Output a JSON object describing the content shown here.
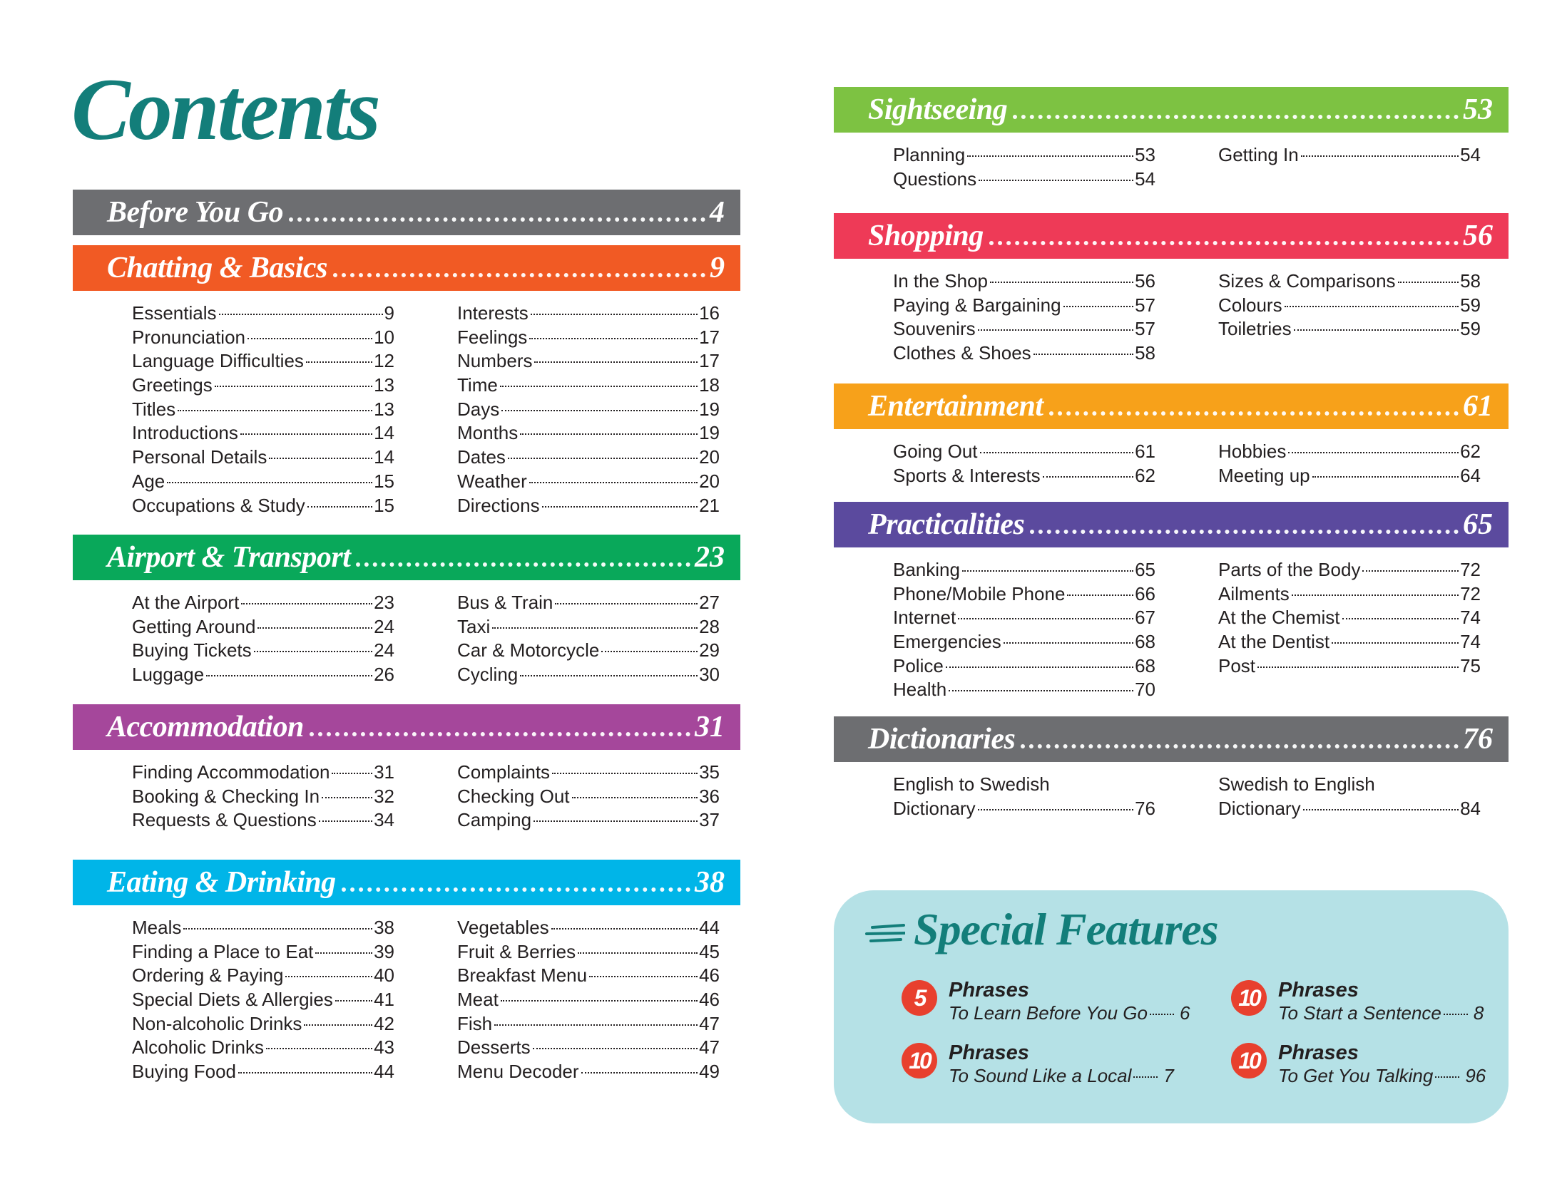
{
  "title": "Contents",
  "sections": [
    {
      "id": "before",
      "title": "Before You Go",
      "page": "4",
      "color": "#6d6e71",
      "columns": []
    },
    {
      "id": "chatting",
      "title": "Chatting & Basics",
      "page": "9",
      "color": "#f15a24",
      "columns": [
        [
          {
            "label": "Essentials",
            "page": "9"
          },
          {
            "label": "Pronunciation",
            "page": "10"
          },
          {
            "label": "Language Difficulties",
            "page": "12"
          },
          {
            "label": "Greetings",
            "page": "13"
          },
          {
            "label": "Titles",
            "page": "13"
          },
          {
            "label": "Introductions",
            "page": "14"
          },
          {
            "label": "Personal Details",
            "page": "14"
          },
          {
            "label": "Age",
            "page": "15"
          },
          {
            "label": "Occupations & Study",
            "page": "15"
          }
        ],
        [
          {
            "label": "Interests",
            "page": "16"
          },
          {
            "label": "Feelings",
            "page": "17"
          },
          {
            "label": "Numbers",
            "page": "17"
          },
          {
            "label": "Time",
            "page": "18"
          },
          {
            "label": "Days",
            "page": "19"
          },
          {
            "label": "Months",
            "page": "19"
          },
          {
            "label": "Dates",
            "page": "20"
          },
          {
            "label": "Weather",
            "page": "20"
          },
          {
            "label": "Directions",
            "page": "21"
          }
        ]
      ]
    },
    {
      "id": "airport",
      "title": "Airport & Transport",
      "page": "23",
      "color": "#09a85a",
      "columns": [
        [
          {
            "label": "At the Airport",
            "page": "23"
          },
          {
            "label": "Getting Around",
            "page": "24"
          },
          {
            "label": "Buying Tickets",
            "page": "24"
          },
          {
            "label": "Luggage",
            "page": "26"
          }
        ],
        [
          {
            "label": "Bus & Train",
            "page": "27"
          },
          {
            "label": "Taxi",
            "page": "28"
          },
          {
            "label": "Car & Motorcycle",
            "page": "29"
          },
          {
            "label": "Cycling",
            "page": "30"
          }
        ]
      ]
    },
    {
      "id": "accommodation",
      "title": "Accommodation",
      "page": "31",
      "color": "#a5479b",
      "columns": [
        [
          {
            "label": "Finding Accommodation",
            "page": "31"
          },
          {
            "label": "Booking & Checking In",
            "page": "32"
          },
          {
            "label": "Requests & Questions",
            "page": "34"
          }
        ],
        [
          {
            "label": "Complaints",
            "page": "35"
          },
          {
            "label": "Checking Out",
            "page": "36"
          },
          {
            "label": "Camping",
            "page": "37"
          }
        ]
      ]
    },
    {
      "id": "eating",
      "title": "Eating & Drinking",
      "page": "38",
      "color": "#00b5e8",
      "columns": [
        [
          {
            "label": "Meals",
            "page": "38"
          },
          {
            "label": "Finding a Place to Eat",
            "page": "39"
          },
          {
            "label": "Ordering & Paying",
            "page": "40"
          },
          {
            "label": "Special Diets & Allergies",
            "page": "41"
          },
          {
            "label": "Non-alcoholic Drinks",
            "page": "42"
          },
          {
            "label": "Alcoholic Drinks",
            "page": "43"
          },
          {
            "label": "Buying Food",
            "page": "44"
          }
        ],
        [
          {
            "label": "Vegetables",
            "page": "44"
          },
          {
            "label": "Fruit & Berries",
            "page": "45"
          },
          {
            "label": "Breakfast Menu",
            "page": "46"
          },
          {
            "label": "Meat",
            "page": "46"
          },
          {
            "label": "Fish",
            "page": "47"
          },
          {
            "label": "Desserts",
            "page": "47"
          },
          {
            "label": "Menu Decoder",
            "page": "49"
          }
        ]
      ]
    },
    {
      "id": "sightseeing",
      "title": "Sightseeing",
      "page": "53",
      "color": "#7dc242",
      "columns": [
        [
          {
            "label": "Planning",
            "page": "53"
          },
          {
            "label": "Questions",
            "page": "54"
          }
        ],
        [
          {
            "label": "Getting In",
            "page": "54"
          }
        ]
      ]
    },
    {
      "id": "shopping",
      "title": "Shopping",
      "page": "56",
      "color": "#ee3a57",
      "columns": [
        [
          {
            "label": "In the Shop",
            "page": "56"
          },
          {
            "label": "Paying & Bargaining",
            "page": "57"
          },
          {
            "label": "Souvenirs",
            "page": "57"
          },
          {
            "label": "Clothes & Shoes",
            "page": "58"
          }
        ],
        [
          {
            "label": "Sizes & Comparisons",
            "page": "58"
          },
          {
            "label": "Colours",
            "page": "59"
          },
          {
            "label": "Toiletries",
            "page": "59"
          }
        ]
      ]
    },
    {
      "id": "entertainment",
      "title": "Entertainment",
      "page": "61",
      "color": "#f7a11a",
      "columns": [
        [
          {
            "label": "Going Out",
            "page": "61"
          },
          {
            "label": "Sports & Interests",
            "page": "62"
          }
        ],
        [
          {
            "label": "Hobbies",
            "page": "62"
          },
          {
            "label": "Meeting up",
            "page": "64"
          }
        ]
      ]
    },
    {
      "id": "practicalities",
      "title": "Practicalities",
      "page": "65",
      "color": "#5b4a9e",
      "columns": [
        [
          {
            "label": "Banking",
            "page": "65"
          },
          {
            "label": "Phone/Mobile Phone",
            "page": "66"
          },
          {
            "label": "Internet",
            "page": "67"
          },
          {
            "label": "Emergencies",
            "page": "68"
          },
          {
            "label": "Police",
            "page": "68"
          },
          {
            "label": "Health",
            "page": "70"
          }
        ],
        [
          {
            "label": "Parts of the Body",
            "page": "72"
          },
          {
            "label": "Ailments",
            "page": "72"
          },
          {
            "label": "At the Chemist",
            "page": "74"
          },
          {
            "label": "At the Dentist",
            "page": "74"
          },
          {
            "label": "Post",
            "page": "75"
          }
        ]
      ]
    },
    {
      "id": "dictionaries",
      "title": "Dictionaries",
      "page": "76",
      "color": "#6d6e71",
      "columns": [
        [
          {
            "label": "English to Swedish"
          },
          {
            "label": "Dictionary",
            "page": "76"
          }
        ],
        [
          {
            "label": "Swedish to English"
          },
          {
            "label": "Dictionary",
            "page": "84"
          }
        ]
      ]
    }
  ],
  "special_features": {
    "title": "Special Features",
    "title_color": "#137e7a",
    "background": "#b5e1e6",
    "badge_color": "#e8402e",
    "items": [
      {
        "number": "5",
        "heading": "Phrases",
        "subtitle": "To Learn Before You Go",
        "page": "6"
      },
      {
        "number": "10",
        "heading": "Phrases",
        "subtitle": "To Start a Sentence",
        "page": "8"
      },
      {
        "number": "10",
        "heading": "Phrases",
        "subtitle": "To Sound Like a Local",
        "page": "7"
      },
      {
        "number": "10",
        "heading": "Phrases",
        "subtitle": "To Get You Talking",
        "page": "96"
      }
    ]
  }
}
